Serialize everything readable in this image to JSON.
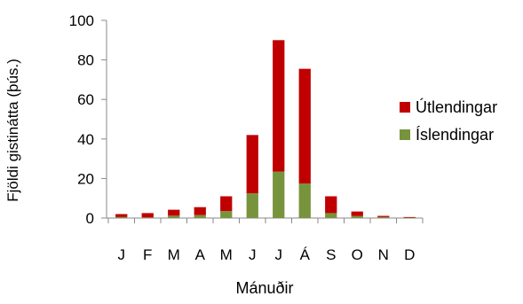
{
  "chart_data": {
    "type": "bar",
    "stacked": true,
    "categories": [
      "J",
      "F",
      "M",
      "A",
      "M",
      "J",
      "J",
      "Á",
      "S",
      "O",
      "N",
      "D"
    ],
    "series": [
      {
        "name": "Íslendingar",
        "color": "#77933C",
        "values": [
          0.5,
          0.3,
          1.2,
          1.5,
          3.5,
          12.5,
          23.5,
          17.5,
          2.5,
          1.0,
          0.5,
          0.2
        ]
      },
      {
        "name": "Útlendingar",
        "color": "#C00000",
        "values": [
          1.5,
          2.2,
          3.0,
          4.0,
          7.5,
          29.5,
          66.5,
          58.0,
          8.5,
          2.3,
          0.6,
          0.3
        ]
      }
    ],
    "xlabel": "Mánuðir",
    "ylabel": "Fjöldi gistinátta (þús.)",
    "ylim": [
      0,
      100
    ],
    "yticks": [
      0,
      20,
      40,
      60,
      80,
      100
    ],
    "grid": false,
    "legend": "right"
  }
}
